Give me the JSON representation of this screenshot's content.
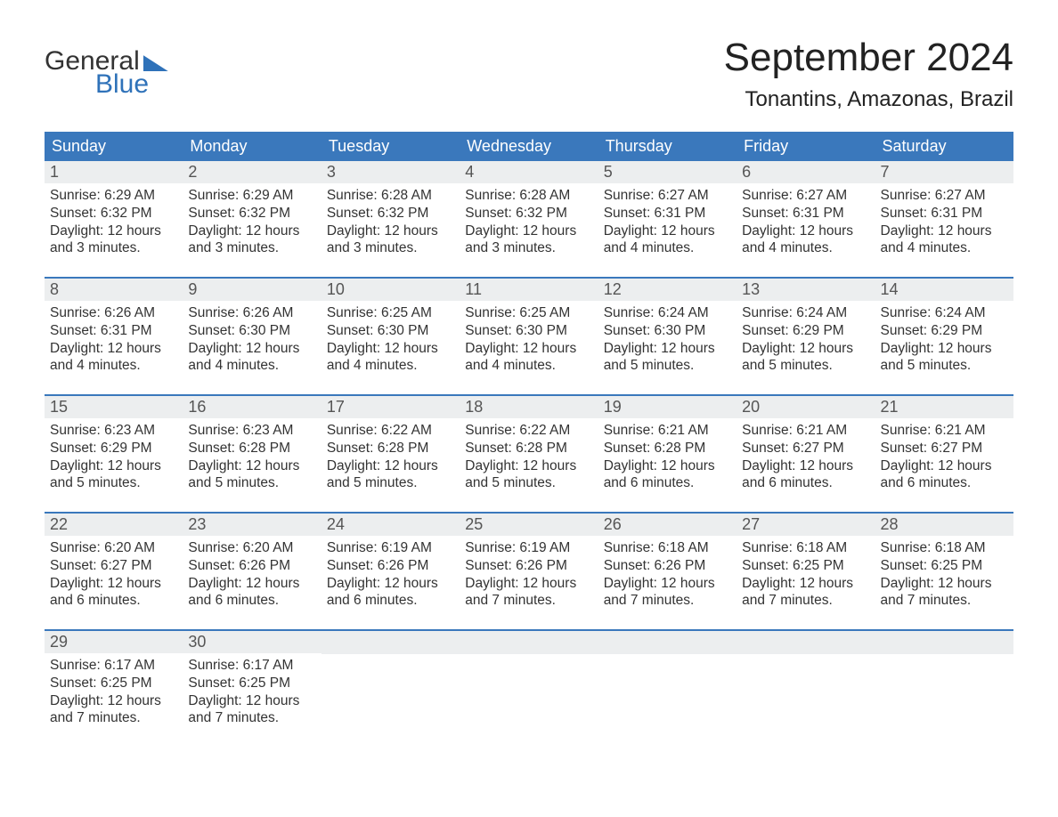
{
  "logo": {
    "word1": "General",
    "word2": "Blue"
  },
  "title": "September 2024",
  "subtitle": "Tonantins, Amazonas, Brazil",
  "colors": {
    "header_bg": "#3a78bc",
    "header_text": "#ffffff",
    "daynum_bg": "#eceeef",
    "daynum_text": "#555555",
    "body_text": "#333333",
    "rule": "#3a78bc",
    "logo_accent": "#2f72b9",
    "page_bg": "#ffffff"
  },
  "typography": {
    "title_fontsize": 44,
    "subtitle_fontsize": 24,
    "dayheader_fontsize": 18,
    "daynum_fontsize": 18,
    "body_fontsize": 15.5,
    "font_family": "Arial"
  },
  "day_headers": [
    "Sunday",
    "Monday",
    "Tuesday",
    "Wednesday",
    "Thursday",
    "Friday",
    "Saturday"
  ],
  "weeks": [
    [
      {
        "num": "1",
        "sunrise": "Sunrise: 6:29 AM",
        "sunset": "Sunset: 6:32 PM",
        "day1": "Daylight: 12 hours",
        "day2": "and 3 minutes."
      },
      {
        "num": "2",
        "sunrise": "Sunrise: 6:29 AM",
        "sunset": "Sunset: 6:32 PM",
        "day1": "Daylight: 12 hours",
        "day2": "and 3 minutes."
      },
      {
        "num": "3",
        "sunrise": "Sunrise: 6:28 AM",
        "sunset": "Sunset: 6:32 PM",
        "day1": "Daylight: 12 hours",
        "day2": "and 3 minutes."
      },
      {
        "num": "4",
        "sunrise": "Sunrise: 6:28 AM",
        "sunset": "Sunset: 6:32 PM",
        "day1": "Daylight: 12 hours",
        "day2": "and 3 minutes."
      },
      {
        "num": "5",
        "sunrise": "Sunrise: 6:27 AM",
        "sunset": "Sunset: 6:31 PM",
        "day1": "Daylight: 12 hours",
        "day2": "and 4 minutes."
      },
      {
        "num": "6",
        "sunrise": "Sunrise: 6:27 AM",
        "sunset": "Sunset: 6:31 PM",
        "day1": "Daylight: 12 hours",
        "day2": "and 4 minutes."
      },
      {
        "num": "7",
        "sunrise": "Sunrise: 6:27 AM",
        "sunset": "Sunset: 6:31 PM",
        "day1": "Daylight: 12 hours",
        "day2": "and 4 minutes."
      }
    ],
    [
      {
        "num": "8",
        "sunrise": "Sunrise: 6:26 AM",
        "sunset": "Sunset: 6:31 PM",
        "day1": "Daylight: 12 hours",
        "day2": "and 4 minutes."
      },
      {
        "num": "9",
        "sunrise": "Sunrise: 6:26 AM",
        "sunset": "Sunset: 6:30 PM",
        "day1": "Daylight: 12 hours",
        "day2": "and 4 minutes."
      },
      {
        "num": "10",
        "sunrise": "Sunrise: 6:25 AM",
        "sunset": "Sunset: 6:30 PM",
        "day1": "Daylight: 12 hours",
        "day2": "and 4 minutes."
      },
      {
        "num": "11",
        "sunrise": "Sunrise: 6:25 AM",
        "sunset": "Sunset: 6:30 PM",
        "day1": "Daylight: 12 hours",
        "day2": "and 4 minutes."
      },
      {
        "num": "12",
        "sunrise": "Sunrise: 6:24 AM",
        "sunset": "Sunset: 6:30 PM",
        "day1": "Daylight: 12 hours",
        "day2": "and 5 minutes."
      },
      {
        "num": "13",
        "sunrise": "Sunrise: 6:24 AM",
        "sunset": "Sunset: 6:29 PM",
        "day1": "Daylight: 12 hours",
        "day2": "and 5 minutes."
      },
      {
        "num": "14",
        "sunrise": "Sunrise: 6:24 AM",
        "sunset": "Sunset: 6:29 PM",
        "day1": "Daylight: 12 hours",
        "day2": "and 5 minutes."
      }
    ],
    [
      {
        "num": "15",
        "sunrise": "Sunrise: 6:23 AM",
        "sunset": "Sunset: 6:29 PM",
        "day1": "Daylight: 12 hours",
        "day2": "and 5 minutes."
      },
      {
        "num": "16",
        "sunrise": "Sunrise: 6:23 AM",
        "sunset": "Sunset: 6:28 PM",
        "day1": "Daylight: 12 hours",
        "day2": "and 5 minutes."
      },
      {
        "num": "17",
        "sunrise": "Sunrise: 6:22 AM",
        "sunset": "Sunset: 6:28 PM",
        "day1": "Daylight: 12 hours",
        "day2": "and 5 minutes."
      },
      {
        "num": "18",
        "sunrise": "Sunrise: 6:22 AM",
        "sunset": "Sunset: 6:28 PM",
        "day1": "Daylight: 12 hours",
        "day2": "and 5 minutes."
      },
      {
        "num": "19",
        "sunrise": "Sunrise: 6:21 AM",
        "sunset": "Sunset: 6:28 PM",
        "day1": "Daylight: 12 hours",
        "day2": "and 6 minutes."
      },
      {
        "num": "20",
        "sunrise": "Sunrise: 6:21 AM",
        "sunset": "Sunset: 6:27 PM",
        "day1": "Daylight: 12 hours",
        "day2": "and 6 minutes."
      },
      {
        "num": "21",
        "sunrise": "Sunrise: 6:21 AM",
        "sunset": "Sunset: 6:27 PM",
        "day1": "Daylight: 12 hours",
        "day2": "and 6 minutes."
      }
    ],
    [
      {
        "num": "22",
        "sunrise": "Sunrise: 6:20 AM",
        "sunset": "Sunset: 6:27 PM",
        "day1": "Daylight: 12 hours",
        "day2": "and 6 minutes."
      },
      {
        "num": "23",
        "sunrise": "Sunrise: 6:20 AM",
        "sunset": "Sunset: 6:26 PM",
        "day1": "Daylight: 12 hours",
        "day2": "and 6 minutes."
      },
      {
        "num": "24",
        "sunrise": "Sunrise: 6:19 AM",
        "sunset": "Sunset: 6:26 PM",
        "day1": "Daylight: 12 hours",
        "day2": "and 6 minutes."
      },
      {
        "num": "25",
        "sunrise": "Sunrise: 6:19 AM",
        "sunset": "Sunset: 6:26 PM",
        "day1": "Daylight: 12 hours",
        "day2": "and 7 minutes."
      },
      {
        "num": "26",
        "sunrise": "Sunrise: 6:18 AM",
        "sunset": "Sunset: 6:26 PM",
        "day1": "Daylight: 12 hours",
        "day2": "and 7 minutes."
      },
      {
        "num": "27",
        "sunrise": "Sunrise: 6:18 AM",
        "sunset": "Sunset: 6:25 PM",
        "day1": "Daylight: 12 hours",
        "day2": "and 7 minutes."
      },
      {
        "num": "28",
        "sunrise": "Sunrise: 6:18 AM",
        "sunset": "Sunset: 6:25 PM",
        "day1": "Daylight: 12 hours",
        "day2": "and 7 minutes."
      }
    ],
    [
      {
        "num": "29",
        "sunrise": "Sunrise: 6:17 AM",
        "sunset": "Sunset: 6:25 PM",
        "day1": "Daylight: 12 hours",
        "day2": "and 7 minutes."
      },
      {
        "num": "30",
        "sunrise": "Sunrise: 6:17 AM",
        "sunset": "Sunset: 6:25 PM",
        "day1": "Daylight: 12 hours",
        "day2": "and 7 minutes."
      },
      {
        "empty": true
      },
      {
        "empty": true
      },
      {
        "empty": true
      },
      {
        "empty": true
      },
      {
        "empty": true
      }
    ]
  ]
}
